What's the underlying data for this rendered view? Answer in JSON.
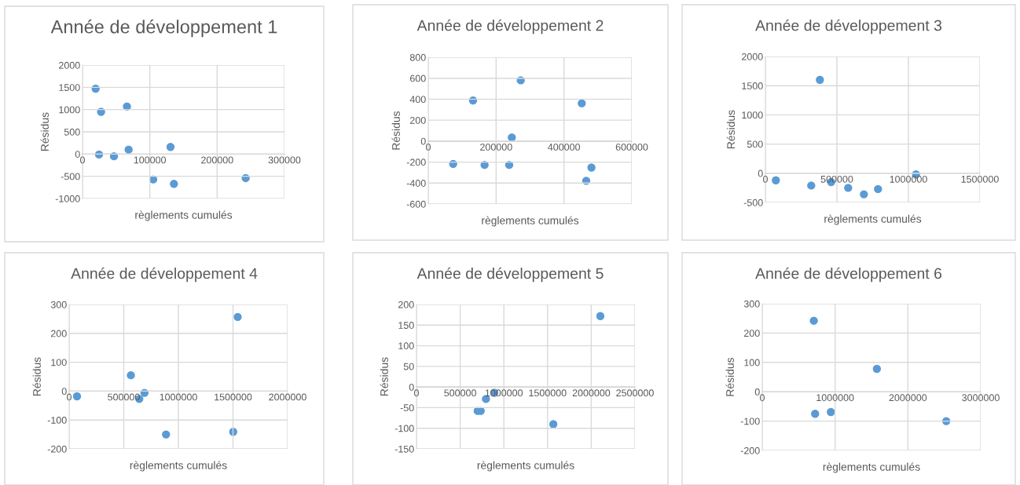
{
  "chart_data": [
    {
      "type": "scatter",
      "title": "Année de développement 1",
      "xlabel": "règlements cumulés",
      "ylabel": "Résidus",
      "xlim": [
        0,
        300000
      ],
      "xticks": [
        0,
        100000,
        200000,
        300000
      ],
      "ylim": [
        -1000,
        2000
      ],
      "yticks": [
        -1000,
        -500,
        0,
        500,
        1000,
        1500,
        2000
      ],
      "grid": true,
      "marker": "circle",
      "series": [
        {
          "color": "#5b9bd5",
          "x": [
            19500,
            27600,
            66000,
            24500,
            46700,
            68500,
            130700,
            105000,
            135800,
            242400
          ],
          "values": [
            1470,
            950,
            1070,
            -10,
            -50,
            100,
            160,
            -570,
            -670,
            -540
          ]
        }
      ]
    },
    {
      "type": "scatter",
      "title": "Année de développement 2",
      "xlabel": "règlements cumulés",
      "ylabel": "Résidus",
      "xlim": [
        0,
        600000
      ],
      "xticks": [
        0,
        200000,
        400000,
        600000
      ],
      "ylim": [
        -600,
        800
      ],
      "yticks": [
        -600,
        -400,
        -200,
        0,
        200,
        400,
        600,
        800
      ],
      "grid": true,
      "marker": "circle",
      "series": [
        {
          "color": "#5b9bd5",
          "x": [
            73400,
            132000,
            166000,
            238600,
            246300,
            272600,
            452500,
            465600,
            481000
          ],
          "values": [
            -217,
            388,
            -227,
            -227,
            35,
            580,
            361,
            -378,
            -252
          ]
        }
      ]
    },
    {
      "type": "scatter",
      "title": "Année de développement 3",
      "xlabel": "règlements cumulés",
      "ylabel": "Résidus",
      "xlim": [
        0,
        1500000
      ],
      "xticks": [
        0,
        500000,
        1000000,
        1500000
      ],
      "ylim": [
        -500,
        2000
      ],
      "yticks": [
        -500,
        0,
        500,
        1000,
        1500,
        2000
      ],
      "grid": true,
      "marker": "circle",
      "series": [
        {
          "color": "#5b9bd5",
          "x": [
            73000,
            320500,
            381000,
            459700,
            578800,
            688700,
            787500,
            1053000
          ],
          "values": [
            -120,
            -210,
            1600,
            -150,
            -250,
            -360,
            -270,
            -20
          ]
        }
      ]
    },
    {
      "type": "scatter",
      "title": "Année de développement 4",
      "xlabel": "règlements cumulés",
      "ylabel": "Résidus",
      "xlim": [
        0,
        2000000
      ],
      "xticks": [
        0,
        500000,
        1000000,
        1500000,
        2000000
      ],
      "ylim": [
        -200,
        300
      ],
      "yticks": [
        -200,
        -100,
        0,
        100,
        200,
        300
      ],
      "grid": true,
      "marker": "circle",
      "series": [
        {
          "color": "#5b9bd5",
          "x": [
            72000,
            565000,
            642000,
            690000,
            887000,
            1502000,
            1543000
          ],
          "values": [
            -18,
            55,
            -27,
            -6,
            -150,
            -141,
            257
          ]
        }
      ]
    },
    {
      "type": "scatter",
      "title": "Année de développement 5",
      "xlabel": "règlements cumulés",
      "ylabel": "Résidus",
      "xlim": [
        0,
        2500000
      ],
      "xticks": [
        0,
        500000,
        1000000,
        1500000,
        2000000,
        2500000
      ],
      "ylim": [
        -150,
        200
      ],
      "yticks": [
        -150,
        -100,
        -50,
        0,
        50,
        100,
        150,
        200
      ],
      "grid": true,
      "marker": "circle",
      "series": [
        {
          "color": "#5b9bd5",
          "x": [
            700000,
            735000,
            795000,
            891000,
            1566000,
            2104000
          ],
          "values": [
            -58,
            -58,
            -29,
            -14,
            -90,
            172
          ]
        }
      ]
    },
    {
      "type": "scatter",
      "title": "Année de développement 6",
      "xlabel": "règlements cumulés",
      "ylabel": "Résidus",
      "xlim": [
        0,
        3000000
      ],
      "xticks": [
        0,
        1000000,
        2000000,
        3000000
      ],
      "ylim": [
        -200,
        300
      ],
      "yticks": [
        -200,
        -100,
        0,
        100,
        200,
        300
      ],
      "grid": true,
      "marker": "circle",
      "series": [
        {
          "color": "#5b9bd5",
          "x": [
            708000,
            726000,
            942000,
            1574000,
            2527000
          ],
          "values": [
            242,
            -75,
            -69,
            78,
            -100
          ]
        }
      ]
    }
  ]
}
